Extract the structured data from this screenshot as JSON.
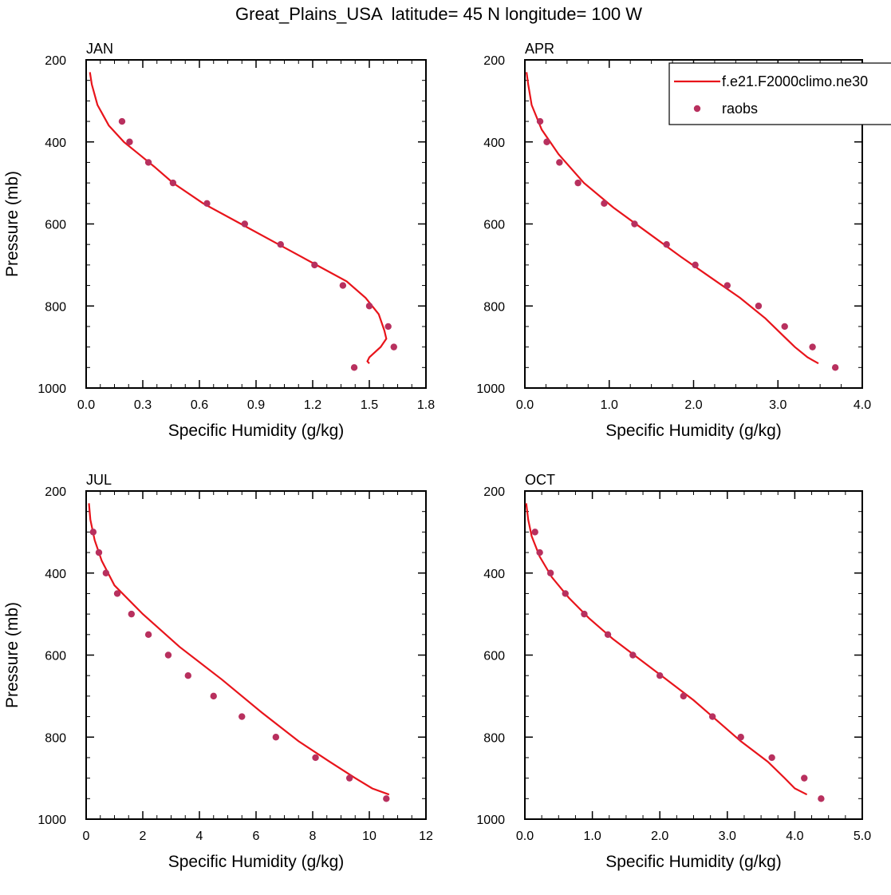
{
  "figure": {
    "title": "Great_Plains_USA  latitude= 45 N longitude= 100 W"
  },
  "legend": {
    "placement": "top-right of APR panel",
    "entries": [
      {
        "label": "f.e21.F2000climo.ne30",
        "kind": "line",
        "color": "#e8141b"
      },
      {
        "label": "raobs",
        "kind": "marker",
        "color": "#b8305e"
      }
    ]
  },
  "colors": {
    "model_line": "#e8141b",
    "obs_marker": "#b8305e",
    "axis": "#000000"
  },
  "chart_data": [
    {
      "type": "line",
      "panel": "JAN",
      "title": "JAN",
      "xlabel": "Specific Humidity (g/kg)",
      "ylabel": "Pressure (mb)",
      "xlim": [
        0,
        1.8
      ],
      "ylim": [
        200,
        1000
      ],
      "y_reversed": true,
      "xticks": [
        0,
        0.3,
        0.6,
        0.9,
        1.2,
        1.5,
        1.8
      ],
      "xtick_labels": [
        "0.0",
        "0.3",
        "0.6",
        "0.9",
        "1.2",
        "1.5",
        "1.8"
      ],
      "yticks": [
        200,
        400,
        600,
        800,
        1000
      ],
      "grid": false,
      "series": [
        {
          "name": "f.e21.F2000climo.ne30",
          "style": "line",
          "x": [
            0.02,
            0.03,
            0.06,
            0.12,
            0.2,
            0.28,
            0.36,
            0.46,
            0.62,
            0.82,
            1.02,
            1.22,
            1.38,
            1.48,
            1.55,
            1.58,
            1.59,
            1.56,
            1.5,
            1.49,
            1.5
          ],
          "y": [
            230,
            260,
            310,
            360,
            400,
            430,
            460,
            500,
            550,
            600,
            650,
            700,
            740,
            780,
            820,
            860,
            880,
            900,
            925,
            935,
            940
          ]
        },
        {
          "name": "raobs",
          "style": "marker",
          "x": [
            0.19,
            0.23,
            0.33,
            0.46,
            0.64,
            0.84,
            1.03,
            1.21,
            1.36,
            1.5,
            1.6,
            1.63,
            1.42
          ],
          "y": [
            350,
            400,
            450,
            500,
            550,
            600,
            650,
            700,
            750,
            800,
            850,
            900,
            950
          ]
        }
      ]
    },
    {
      "type": "line",
      "panel": "APR",
      "title": "APR",
      "xlabel": "Specific Humidity (g/kg)",
      "ylabel": "",
      "xlim": [
        0,
        4.0
      ],
      "ylim": [
        200,
        1000
      ],
      "y_reversed": true,
      "xticks": [
        0,
        1,
        2,
        3,
        4
      ],
      "xtick_labels": [
        "0.0",
        "1.0",
        "2.0",
        "3.0",
        "4.0"
      ],
      "yticks": [
        200,
        400,
        600,
        800,
        1000
      ],
      "grid": false,
      "series": [
        {
          "name": "f.e21.F2000climo.ne30",
          "style": "line",
          "x": [
            0.02,
            0.04,
            0.08,
            0.2,
            0.4,
            0.7,
            1.05,
            1.45,
            1.85,
            2.2,
            2.55,
            2.85,
            3.05,
            3.2,
            3.35,
            3.48
          ],
          "y": [
            230,
            260,
            310,
            370,
            430,
            500,
            560,
            620,
            680,
            730,
            780,
            830,
            870,
            900,
            925,
            940
          ]
        },
        {
          "name": "raobs",
          "style": "marker",
          "x": [
            0.18,
            0.26,
            0.41,
            0.63,
            0.94,
            1.3,
            1.68,
            2.02,
            2.4,
            2.77,
            3.08,
            3.41,
            3.68
          ],
          "y": [
            350,
            400,
            450,
            500,
            550,
            600,
            650,
            700,
            750,
            800,
            850,
            900,
            950
          ]
        }
      ]
    },
    {
      "type": "line",
      "panel": "JUL",
      "title": "JUL",
      "xlabel": "Specific Humidity (g/kg)",
      "ylabel": "Pressure (mb)",
      "xlim": [
        0,
        12
      ],
      "ylim": [
        200,
        1000
      ],
      "y_reversed": true,
      "xticks": [
        0,
        2,
        4,
        6,
        8,
        10,
        12
      ],
      "xtick_labels": [
        "0",
        "2",
        "4",
        "6",
        "8",
        "10",
        "12"
      ],
      "yticks": [
        200,
        400,
        600,
        800,
        1000
      ],
      "grid": false,
      "series": [
        {
          "name": "f.e21.F2000climo.ne30",
          "style": "line",
          "x": [
            0.1,
            0.15,
            0.3,
            0.55,
            1.0,
            2.0,
            3.3,
            4.8,
            6.2,
            7.5,
            8.6,
            9.5,
            10.1,
            10.7
          ],
          "y": [
            230,
            270,
            320,
            370,
            430,
            500,
            580,
            660,
            740,
            810,
            860,
            900,
            925,
            940
          ]
        },
        {
          "name": "raobs",
          "style": "marker",
          "x": [
            0.25,
            0.45,
            0.7,
            1.1,
            1.6,
            2.2,
            2.9,
            3.6,
            4.5,
            5.5,
            6.7,
            8.1,
            9.3,
            10.6
          ],
          "y": [
            300,
            350,
            400,
            450,
            500,
            550,
            600,
            650,
            700,
            750,
            800,
            850,
            900,
            950
          ]
        }
      ]
    },
    {
      "type": "line",
      "panel": "OCT",
      "title": "OCT",
      "xlabel": "Specific Humidity (g/kg)",
      "ylabel": "",
      "xlim": [
        0,
        5.0
      ],
      "ylim": [
        200,
        1000
      ],
      "y_reversed": true,
      "xticks": [
        0,
        1,
        2,
        3,
        4,
        5
      ],
      "xtick_labels": [
        "0.0",
        "1.0",
        "2.0",
        "3.0",
        "4.0",
        "5.0"
      ],
      "yticks": [
        200,
        400,
        600,
        800,
        1000
      ],
      "grid": false,
      "series": [
        {
          "name": "f.e21.F2000climo.ne30",
          "style": "line",
          "x": [
            0.02,
            0.05,
            0.1,
            0.22,
            0.4,
            0.65,
            0.95,
            1.3,
            1.7,
            2.1,
            2.5,
            2.85,
            3.2,
            3.6,
            3.85,
            4.0,
            4.18
          ],
          "y": [
            230,
            270,
            310,
            360,
            410,
            460,
            510,
            560,
            610,
            660,
            710,
            760,
            810,
            860,
            900,
            925,
            940
          ]
        },
        {
          "name": "raobs",
          "style": "marker",
          "x": [
            0.15,
            0.22,
            0.38,
            0.6,
            0.88,
            1.23,
            1.6,
            2.0,
            2.35,
            2.78,
            3.2,
            3.66,
            4.14,
            4.39
          ],
          "y": [
            300,
            350,
            400,
            450,
            500,
            550,
            600,
            650,
            700,
            750,
            800,
            850,
            900,
            950
          ]
        }
      ]
    }
  ]
}
